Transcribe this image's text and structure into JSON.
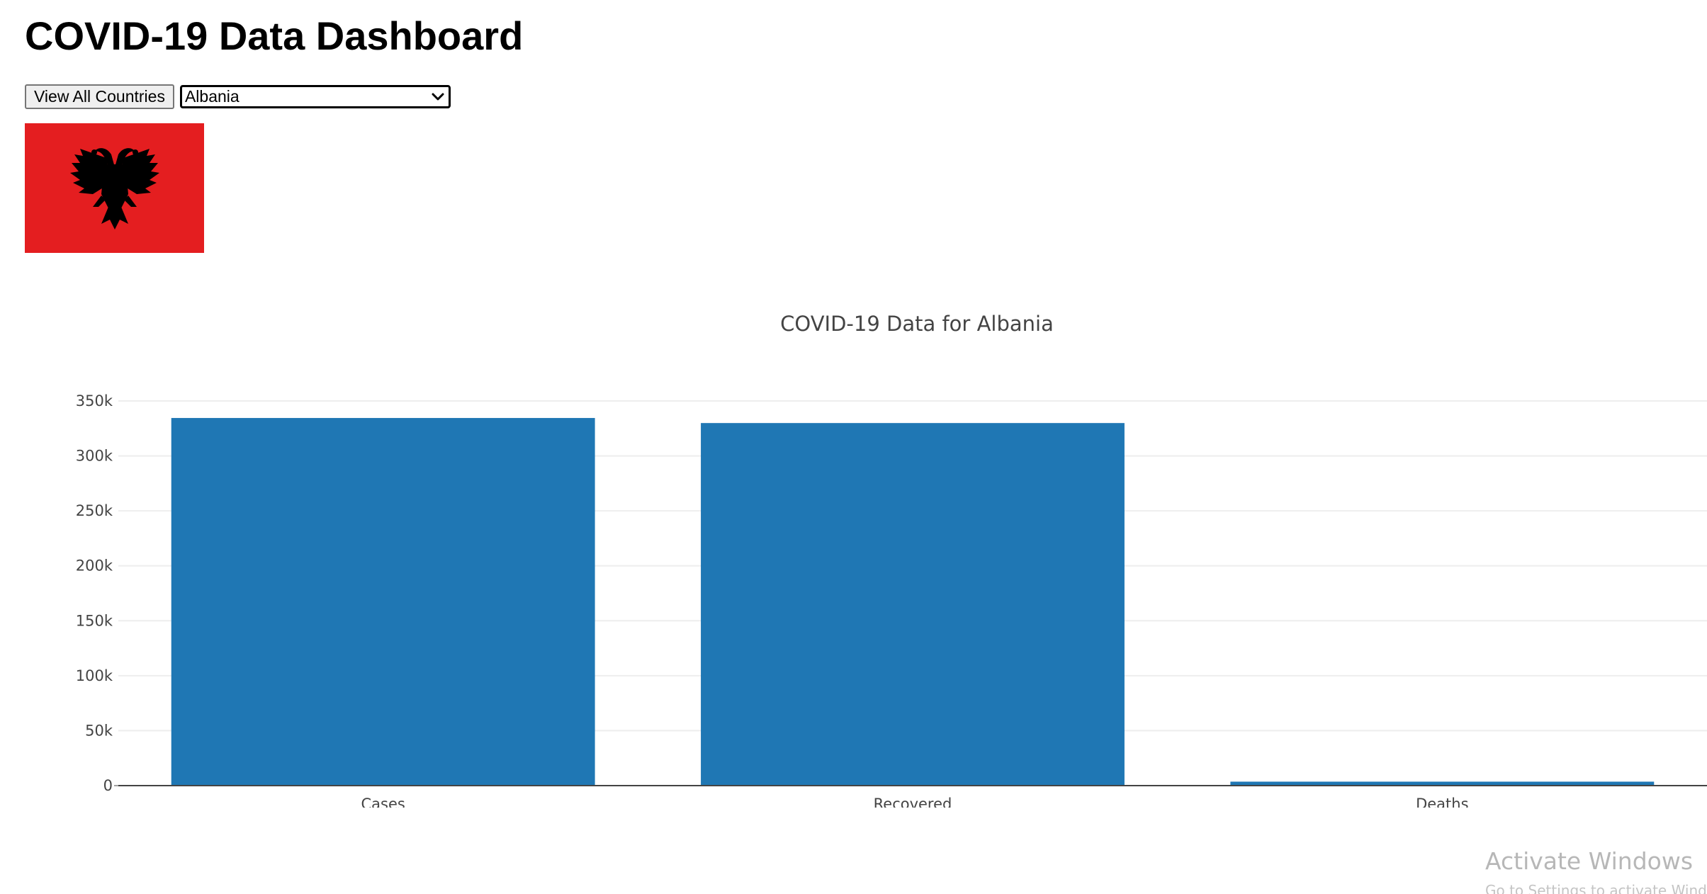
{
  "header": {
    "title": "COVID-19 Data Dashboard"
  },
  "controls": {
    "view_all_label": "View All Countries",
    "country_select": {
      "selected": "Albania"
    }
  },
  "flag": {
    "country": "Albania",
    "background_color": "#e41e20",
    "emblem_color": "#000000",
    "emblem_icon": "double-headed-eagle-icon"
  },
  "chart_data": {
    "type": "bar",
    "title": "COVID-19 Data for Albania",
    "categories": [
      "Cases",
      "Recovered",
      "Deaths"
    ],
    "values": [
      334500,
      329900,
      3600
    ],
    "ylim": [
      0,
      350000
    ],
    "yticks": [
      0,
      50000,
      100000,
      150000,
      200000,
      250000,
      300000,
      350000
    ],
    "ytick_labels": [
      "0",
      "50k",
      "100k",
      "150k",
      "200k",
      "250k",
      "300k",
      "350k"
    ],
    "xlabel": "",
    "ylabel": "",
    "bar_color": "#1f77b4",
    "grid": true
  },
  "os_watermark": {
    "title": "Activate Windows",
    "subtitle": "Go to Settings to activate Windows."
  }
}
